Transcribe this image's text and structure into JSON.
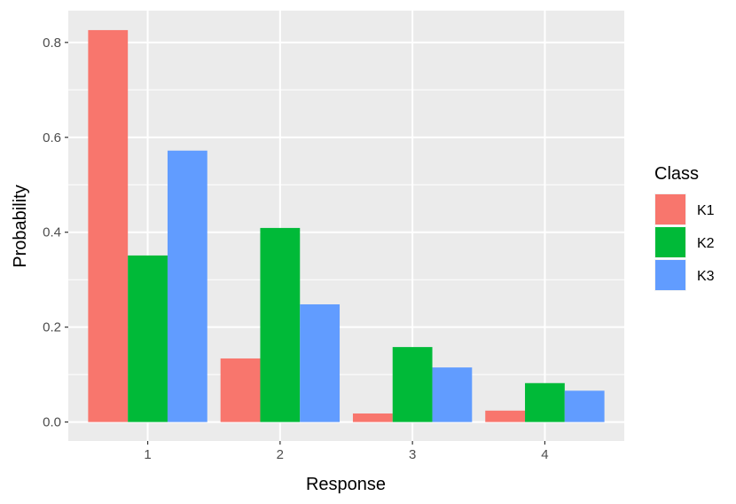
{
  "chart_data": {
    "type": "bar",
    "categories": [
      "1",
      "2",
      "3",
      "4"
    ],
    "series": [
      {
        "name": "K1",
        "color": "#F8766D",
        "values": [
          0.826,
          0.134,
          0.018,
          0.024
        ]
      },
      {
        "name": "K2",
        "color": "#00BA38",
        "values": [
          0.351,
          0.409,
          0.158,
          0.082
        ]
      },
      {
        "name": "K3",
        "color": "#619CFF",
        "values": [
          0.572,
          0.248,
          0.115,
          0.066
        ]
      }
    ],
    "xlabel": "Response",
    "ylabel": "Probability",
    "ylim": [
      -0.04,
      0.867
    ],
    "yticks": [
      0.0,
      0.2,
      0.4,
      0.6,
      0.8
    ],
    "ytick_labels": [
      "0.0",
      "0.2",
      "0.4",
      "0.6",
      "0.8"
    ],
    "grid": true,
    "panel_background": "#EBEBEB",
    "legend": {
      "title": "Class",
      "position": "right"
    }
  }
}
